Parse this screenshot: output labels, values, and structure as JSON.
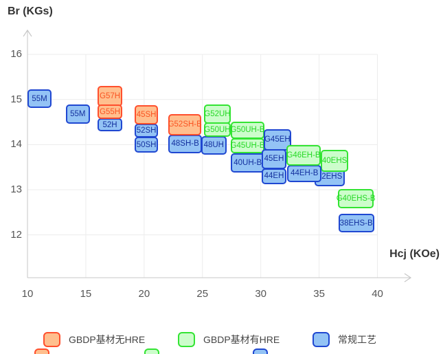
{
  "chart_data": {
    "type": "scatter",
    "mark": "labeled-rect-range",
    "title": "",
    "xlabel": "Hcj (KOe)",
    "ylabel": "Br (KGs)",
    "xlim": [
      10,
      42.5
    ],
    "ylim": [
      11.05,
      16.52
    ],
    "x_ticks": [
      10,
      15,
      20,
      25,
      30,
      35,
      40
    ],
    "y_ticks": [
      12,
      13,
      14,
      15,
      16
    ],
    "grid": true,
    "legend_position": "bottom",
    "boxes": [
      {
        "label": "55M",
        "family": "conventional",
        "x": [
          10.0,
          12.06
        ],
        "y": [
          14.81,
          15.22
        ]
      },
      {
        "label": "55M",
        "family": "conventional",
        "x": [
          13.3,
          15.34
        ],
        "y": [
          14.47,
          14.89
        ]
      },
      {
        "label": "52H",
        "family": "conventional",
        "x": [
          16.0,
          18.14
        ],
        "y": [
          14.29,
          14.59
        ]
      },
      {
        "label": "G57H",
        "family": "gbdp_no_hre",
        "x": [
          16.0,
          18.14
        ],
        "y": [
          14.85,
          15.3
        ]
      },
      {
        "label": "G55H",
        "family": "gbdp_no_hre",
        "x": [
          16.0,
          18.14
        ],
        "y": [
          14.57,
          14.89
        ]
      },
      {
        "label": "50SH",
        "family": "conventional",
        "x": [
          19.19,
          21.19
        ],
        "y": [
          13.82,
          14.17
        ]
      },
      {
        "label": "52SH",
        "family": "conventional",
        "x": [
          19.19,
          21.19
        ],
        "y": [
          14.16,
          14.46
        ]
      },
      {
        "label": "45SH",
        "family": "gbdp_no_hre",
        "x": [
          19.19,
          21.19
        ],
        "y": [
          14.44,
          14.87
        ]
      },
      {
        "label": "48SH-B",
        "family": "conventional",
        "x": [
          22.07,
          24.97
        ],
        "y": [
          13.81,
          14.22
        ]
      },
      {
        "label": "G52SH-B",
        "family": "gbdp_no_hre",
        "x": [
          22.07,
          24.92
        ],
        "y": [
          14.21,
          14.67
        ]
      },
      {
        "label": "48UH",
        "family": "conventional",
        "x": [
          24.88,
          27.07
        ],
        "y": [
          13.78,
          14.19
        ]
      },
      {
        "label": "G50UH",
        "family": "gbdp_hre",
        "x": [
          25.11,
          27.45
        ],
        "y": [
          14.17,
          14.49
        ]
      },
      {
        "label": "G52UH",
        "family": "gbdp_hre",
        "x": [
          25.11,
          27.45
        ],
        "y": [
          14.46,
          14.89
        ]
      },
      {
        "label": "40UH-B",
        "family": "conventional",
        "x": [
          27.4,
          30.37
        ],
        "y": [
          13.38,
          13.81
        ]
      },
      {
        "label": "G45UH-B",
        "family": "gbdp_hre",
        "x": [
          27.43,
          30.31
        ],
        "y": [
          13.8,
          14.14
        ]
      },
      {
        "label": "G50UH-B",
        "family": "gbdp_hre",
        "x": [
          27.43,
          30.31
        ],
        "y": [
          14.13,
          14.51
        ]
      },
      {
        "label": "44EH",
        "family": "conventional",
        "x": [
          30.1,
          32.18
        ],
        "y": [
          13.13,
          13.48
        ]
      },
      {
        "label": "45EH",
        "family": "conventional",
        "x": [
          30.1,
          32.18
        ],
        "y": [
          13.46,
          13.9
        ]
      },
      {
        "label": "G45EH",
        "family": "conventional",
        "x": [
          30.25,
          32.6
        ],
        "y": [
          13.87,
          14.34
        ]
      },
      {
        "label": "42EHS",
        "family": "conventional",
        "x": [
          34.63,
          37.19
        ],
        "y": [
          13.08,
          13.5
        ]
      },
      {
        "label": "40EHS",
        "family": "gbdp_hre",
        "x": [
          35.13,
          37.52
        ],
        "y": [
          13.4,
          13.89
        ]
      },
      {
        "label": "44EH-B",
        "family": "conventional",
        "x": [
          32.27,
          35.22
        ],
        "y": [
          13.17,
          13.55
        ]
      },
      {
        "label": "G46EH-B",
        "family": "gbdp_hre",
        "x": [
          32.2,
          35.13
        ],
        "y": [
          13.53,
          13.99
        ]
      },
      {
        "label": "G40EHS-B",
        "family": "gbdp_hre",
        "x": [
          36.6,
          39.7
        ],
        "y": [
          12.59,
          13.02
        ]
      },
      {
        "label": "38EHS-B",
        "family": "conventional",
        "x": [
          36.65,
          39.72
        ],
        "y": [
          12.05,
          12.47
        ]
      }
    ]
  },
  "families": {
    "gbdp_no_hre": {
      "label": "GBDP基材无HRE",
      "fill": "#ffbf8e",
      "border": "#ff4f2d",
      "text": "#fa5422"
    },
    "gbdp_hre": {
      "label": "GBDP基材有HRE",
      "fill": "#ccfdcb",
      "border": "#33e433",
      "text": "#26d926"
    },
    "conventional": {
      "label": "常规工艺",
      "fill": "#93c3f5",
      "border": "#1f47d1",
      "text": "#14309e"
    }
  },
  "legend": {
    "items": [
      {
        "family": "gbdp_no_hre",
        "label": "GBDP基材无HRE"
      },
      {
        "family": "gbdp_hre",
        "label": "GBDP基材有HRE"
      },
      {
        "family": "conventional",
        "label": "常规工艺"
      }
    ],
    "partial_row_families": [
      "gbdp_no_hre",
      "gbdp_hre",
      "conventional"
    ]
  },
  "styles": {
    "axis_line_color": "#c7c7c7",
    "grid_color": "#ececec",
    "tick_text_color": "#555555",
    "title_text_color": "#333333"
  }
}
